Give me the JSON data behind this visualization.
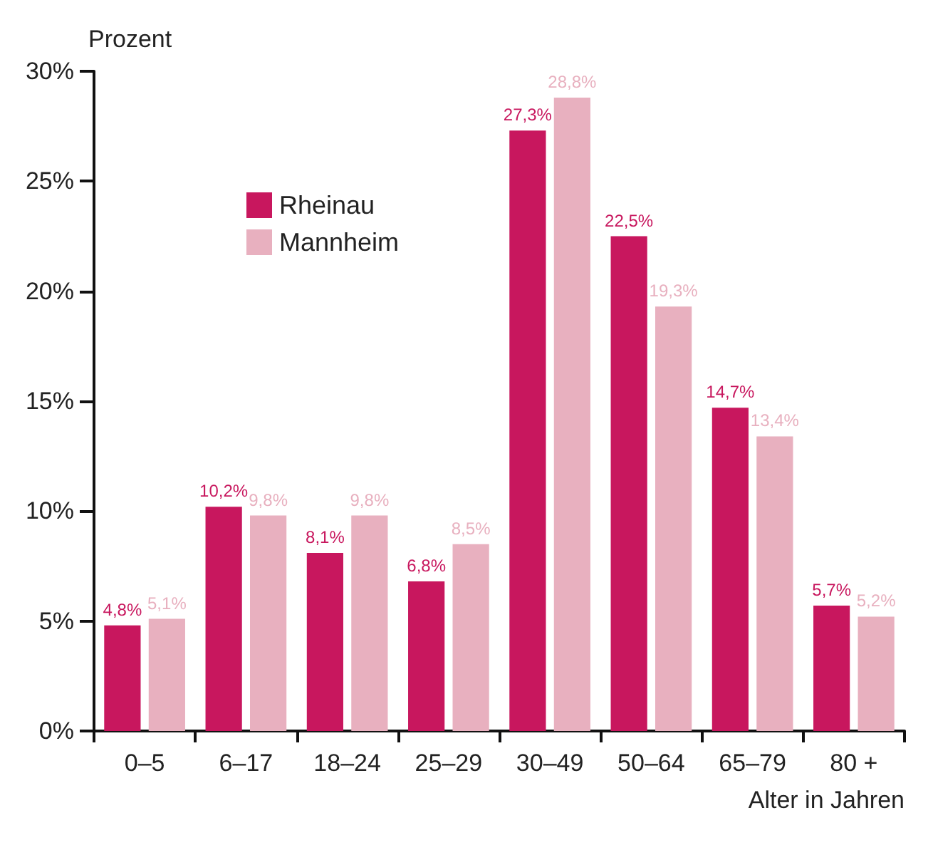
{
  "chart_data": {
    "type": "bar",
    "ylabel": "Prozent",
    "xlabel": "Alter in Jahren",
    "categories": [
      "0–5",
      "6–17",
      "18–24",
      "25–29",
      "30–49",
      "50–64",
      "65–79",
      "80 +"
    ],
    "series": [
      {
        "name": "Rheinau",
        "color": "#c8175e",
        "values": [
          4.8,
          10.2,
          8.1,
          6.8,
          27.3,
          22.5,
          14.7,
          5.7
        ],
        "value_labels": [
          "4,8%",
          "10,2%",
          "8,1%",
          "6,8%",
          "27,3%",
          "22,5%",
          "14,7%",
          "5,7%"
        ]
      },
      {
        "name": "Mannheim",
        "color": "#e8b0bf",
        "values": [
          5.1,
          9.8,
          9.8,
          8.5,
          28.8,
          19.3,
          13.4,
          5.2
        ],
        "value_labels": [
          "5,1%",
          "9,8%",
          "9,8%",
          "8,5%",
          "28,8%",
          "19,3%",
          "13,4%",
          "5,2%"
        ]
      }
    ],
    "ylim": [
      0,
      30
    ],
    "yticks": [
      {
        "value": 0,
        "label": "0%"
      },
      {
        "value": 5,
        "label": "5%"
      },
      {
        "value": 10,
        "label": "10%"
      },
      {
        "value": 15,
        "label": "15%"
      },
      {
        "value": 20,
        "label": "20%"
      },
      {
        "value": 25,
        "label": "25%"
      },
      {
        "value": 30,
        "label": "30%"
      }
    ],
    "grid": false,
    "legend": "top left"
  }
}
